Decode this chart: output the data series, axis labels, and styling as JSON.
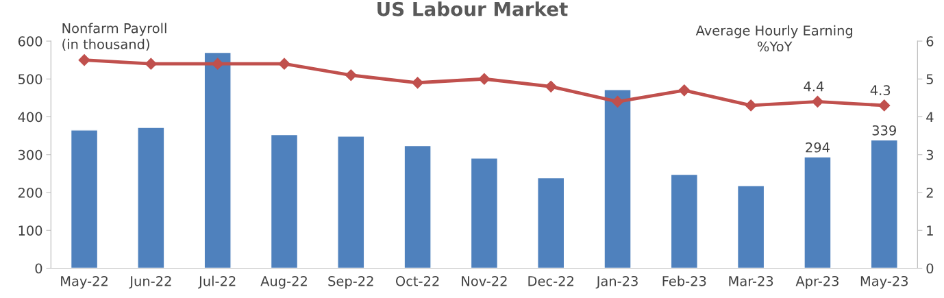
{
  "chart_data": {
    "type": "bar",
    "title": "US Labour Market",
    "ylabel": "Nonfarm Payroll\n(in thousand)",
    "y2label": "Average Hourly Earning\n%YoY",
    "categories": [
      "May-22",
      "Jun-22",
      "Jul-22",
      "Aug-22",
      "Sep-22",
      "Oct-22",
      "Nov-22",
      "Dec-22",
      "Jan-23",
      "Feb-23",
      "Mar-23",
      "Apr-23",
      "May-23"
    ],
    "series": [
      {
        "color": "#4f81bd",
        "values": [
          365,
          372,
          570,
          353,
          349,
          324,
          291,
          239,
          472,
          248,
          218,
          294,
          339
        ],
        "value_labels": [
          null,
          null,
          null,
          null,
          null,
          null,
          null,
          null,
          null,
          null,
          null,
          "294",
          "339"
        ]
      },
      {
        "type": "line",
        "axis": "y2",
        "color": "#c0504d",
        "marker": "diamond",
        "values": [
          5.5,
          5.4,
          5.4,
          5.4,
          5.1,
          4.9,
          5.0,
          4.8,
          4.4,
          4.7,
          4.3,
          4.4,
          4.3
        ],
        "value_labels": [
          null,
          null,
          null,
          null,
          null,
          null,
          null,
          null,
          null,
          null,
          null,
          "4.4",
          "4.3"
        ]
      }
    ],
    "ylim": [
      0,
      600
    ],
    "yticks": [
      0,
      100,
      200,
      300,
      400,
      500,
      600
    ],
    "y2lim": [
      0,
      6
    ],
    "y2ticks": [
      0,
      1,
      2,
      3,
      4,
      5,
      6
    ],
    "grid": false,
    "legend": false
  }
}
